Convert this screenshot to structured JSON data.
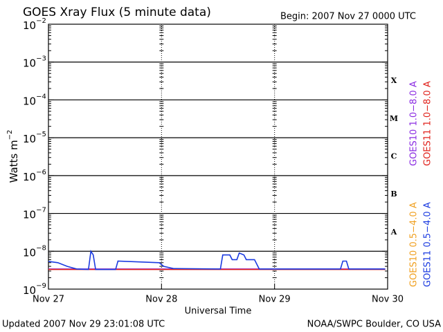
{
  "chart_data": {
    "type": "line",
    "title": "GOES Xray Flux (5 minute data)",
    "subtitle": "Begin:  2007 Nov 27 0000 UTC",
    "x_label": "Universal Time",
    "y_label": "Watts m",
    "y_label_exp": "−2",
    "footer_left": "Updated 2007 Nov 29 23:01:08 UTC",
    "footer_right": "NOAA/SWPC Boulder, CO USA",
    "log_scale": true,
    "grid": true,
    "flare_classes": [
      "X",
      "M",
      "C",
      "B",
      "A"
    ],
    "ylim": [
      1e-09,
      0.01
    ],
    "yticks": [
      {
        "value": 0.01,
        "label": "10",
        "exp": "−2"
      },
      {
        "value": 0.001,
        "label": "10",
        "exp": "−3"
      },
      {
        "value": 0.0001,
        "label": "10",
        "exp": "−4"
      },
      {
        "value": 1e-05,
        "label": "10",
        "exp": "−5"
      },
      {
        "value": 1e-06,
        "label": "10",
        "exp": "−6"
      },
      {
        "value": 1e-07,
        "label": "10",
        "exp": "−7"
      },
      {
        "value": 1e-08,
        "label": "10",
        "exp": "−8"
      },
      {
        "value": 1e-09,
        "label": "10",
        "exp": "−9"
      }
    ],
    "xlim": [
      "2007-11-27T00:00",
      "2007-11-30T00:00"
    ],
    "xticks": [
      {
        "value": "2007-11-27T00:00",
        "label": "Nov 27"
      },
      {
        "value": "2007-11-28T00:00",
        "label": "Nov 28"
      },
      {
        "value": "2007-11-29T00:00",
        "label": "Nov 29"
      },
      {
        "value": "2007-11-30T00:00",
        "label": "Nov 30"
      }
    ],
    "x": [
      "2007-11-27T00:00",
      "2007-11-27T02:00",
      "2007-11-27T04:00",
      "2007-11-27T06:00",
      "2007-11-27T08:30",
      "2007-11-27T09:00",
      "2007-11-27T09:30",
      "2007-11-27T10:00",
      "2007-11-27T14:15",
      "2007-11-27T14:45",
      "2007-11-27T23:30",
      "2007-11-28T00:30",
      "2007-11-28T02:30",
      "2007-11-28T12:30",
      "2007-11-28T13:00",
      "2007-11-28T14:30",
      "2007-11-28T15:00",
      "2007-11-28T16:00",
      "2007-11-28T16:30",
      "2007-11-28T17:30",
      "2007-11-28T18:00",
      "2007-11-28T19:45",
      "2007-11-28T20:45",
      "2007-11-29T14:00",
      "2007-11-29T14:30",
      "2007-11-29T15:15",
      "2007-11-29T15:45",
      "2007-11-29T23:30"
    ],
    "series": [
      {
        "name": "GOES10 1.0−8.0 A",
        "color": "#8a2be2",
        "values": [
          3.4e-09,
          3.4e-09,
          3.4e-09,
          3.4e-09,
          3.4e-09,
          3.4e-09,
          3.4e-09,
          3.4e-09,
          3.4e-09,
          3.4e-09,
          3.4e-09,
          3.4e-09,
          3.4e-09,
          3.4e-09,
          3.4e-09,
          3.4e-09,
          3.4e-09,
          3.4e-09,
          3.4e-09,
          3.4e-09,
          3.4e-09,
          3.4e-09,
          3.4e-09,
          3.4e-09,
          3.4e-09,
          3.4e-09,
          3.4e-09,
          3.4e-09
        ]
      },
      {
        "name": "GOES11 1.0−8.0 A",
        "color": "#e0201a",
        "values": [
          3.3e-09,
          3.3e-09,
          3.3e-09,
          3.3e-09,
          3.3e-09,
          3.3e-09,
          3.3e-09,
          3.3e-09,
          3.3e-09,
          3.3e-09,
          3.3e-09,
          3.3e-09,
          3.3e-09,
          3.3e-09,
          3.3e-09,
          3.3e-09,
          3.3e-09,
          3.3e-09,
          3.3e-09,
          3.3e-09,
          3.3e-09,
          3.3e-09,
          3.3e-09,
          3.3e-09,
          3.3e-09,
          3.3e-09,
          3.3e-09,
          3.3e-09
        ]
      },
      {
        "name": "GOES10 0.5−4.0 A",
        "color": "#f0a020",
        "values": [
          null,
          null,
          null,
          null,
          null,
          null,
          null,
          null,
          null,
          null,
          null,
          null,
          null,
          null,
          null,
          null,
          null,
          null,
          null,
          null,
          null,
          null,
          null,
          null,
          null,
          null,
          null,
          null
        ]
      },
      {
        "name": "GOES11 0.5−4.0 A",
        "color": "#1a3ae0",
        "values": [
          5.4e-09,
          5e-09,
          4e-09,
          3.4e-09,
          3.3e-09,
          1e-08,
          8e-09,
          3.3e-09,
          3.3e-09,
          5.5e-09,
          5e-09,
          4e-09,
          3.5e-09,
          3.4e-09,
          8e-09,
          8e-09,
          6e-09,
          6e-09,
          9e-09,
          8e-09,
          6e-09,
          6e-09,
          3.4e-09,
          3.4e-09,
          5.5e-09,
          5.5e-09,
          3.4e-09,
          3.4e-09
        ]
      }
    ]
  }
}
